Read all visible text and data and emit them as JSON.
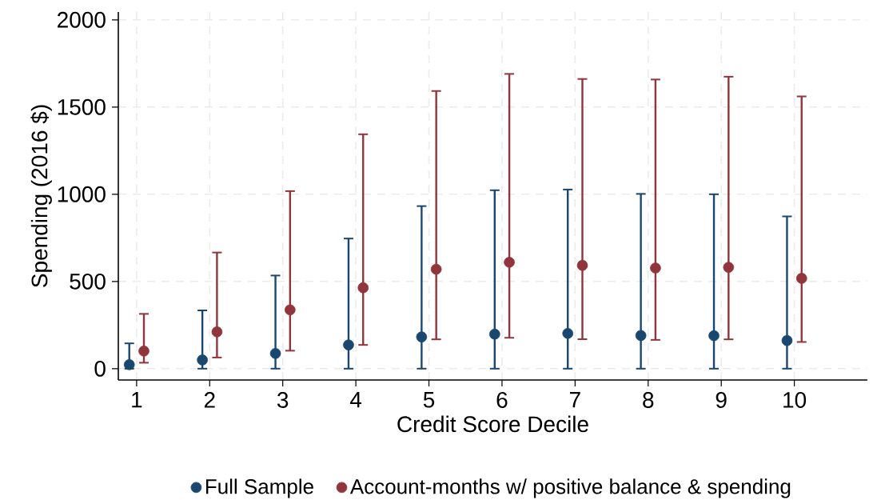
{
  "chart_data": {
    "type": "scatter",
    "xlabel": "Credit Score Decile",
    "ylabel": "Spending (2016 $)",
    "xlim": [
      0.75,
      11
    ],
    "ylim": [
      -65,
      2045
    ],
    "xticks": [
      1,
      2,
      3,
      4,
      5,
      6,
      7,
      8,
      9,
      10
    ],
    "yticks": [
      0,
      500,
      1000,
      1500,
      2000
    ],
    "grid": true,
    "legend": "bottom",
    "marker": "circle",
    "series": [
      {
        "name": "Full Sample",
        "color": "#1a476f",
        "x": [
          0.9,
          1.9,
          2.9,
          3.9,
          4.9,
          5.9,
          6.9,
          7.9,
          8.9,
          9.9
        ],
        "values": [
          23,
          50,
          87,
          136,
          182,
          198,
          202,
          190,
          189,
          161
        ],
        "errors": [
          [
            0,
            145
          ],
          [
            0,
            334
          ],
          [
            0,
            534
          ],
          [
            0,
            746
          ],
          [
            0,
            932
          ],
          [
            0,
            1023
          ],
          [
            0,
            1027
          ],
          [
            0,
            1002
          ],
          [
            0,
            1000
          ],
          [
            0,
            873
          ]
        ]
      },
      {
        "name": "Account-months w/ positive balance & spending",
        "color": "#90353b",
        "x": [
          1.1,
          2.1,
          3.1,
          4.1,
          5.1,
          6.1,
          7.1,
          8.1,
          9.1,
          10.1
        ],
        "values": [
          101,
          211,
          337,
          464,
          570,
          610,
          592,
          577,
          581,
          518
        ],
        "errors": [
          [
            34,
            314
          ],
          [
            64,
            666
          ],
          [
            103,
            1018
          ],
          [
            136,
            1344
          ],
          [
            168,
            1592
          ],
          [
            177,
            1690
          ],
          [
            169,
            1661
          ],
          [
            165,
            1658
          ],
          [
            168,
            1674
          ],
          [
            153,
            1561
          ]
        ]
      }
    ]
  }
}
